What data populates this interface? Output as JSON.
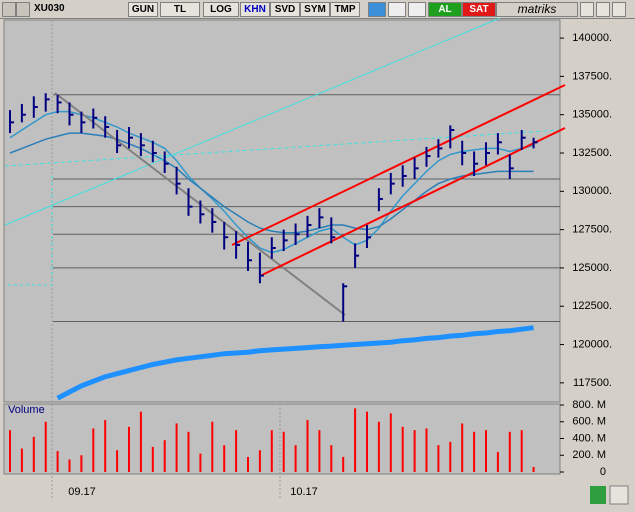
{
  "toolbar": {
    "symbol": "XU030",
    "buttons": [
      "GUN",
      "TL",
      "LOG",
      "KHN",
      "SVD",
      "SYM",
      "TMP"
    ],
    "buy": "AL",
    "sell": "SAT",
    "brand": "matriks"
  },
  "chart_data": [
    {
      "type": "ohlc",
      "ylim": [
        116250,
        141180
      ],
      "yticks": [
        {
          "value": 140000,
          "label": "140000."
        },
        {
          "value": 137500,
          "label": "137500."
        },
        {
          "value": 135000,
          "label": "135000."
        },
        {
          "value": 132500,
          "label": "132500."
        },
        {
          "value": 130000,
          "label": "130000."
        },
        {
          "value": 127500,
          "label": "127500."
        },
        {
          "value": 125000,
          "label": "125000."
        },
        {
          "value": 122500,
          "label": "122500."
        },
        {
          "value": 120000,
          "label": "120000."
        },
        {
          "value": 117500,
          "label": "117500."
        }
      ],
      "x_labels": [
        "09.17",
        "10.17"
      ],
      "color": "#000080",
      "high": [
        135300,
        135700,
        136200,
        136400,
        136300,
        135800,
        135200,
        135400,
        134900,
        134000,
        134200,
        133800,
        133300,
        132600,
        131600,
        130200,
        129400,
        128900,
        128000,
        127400,
        126700,
        126000,
        127000,
        127500,
        127900,
        128400,
        128900,
        128300,
        124000,
        126600,
        127800,
        130200,
        131200,
        131700,
        132200,
        132900,
        133400,
        134300,
        133300,
        132600,
        133200,
        133800,
        132400,
        134000,
        133500
      ],
      "low": [
        133800,
        134500,
        134800,
        135200,
        135100,
        134300,
        133800,
        134100,
        133500,
        132500,
        132800,
        132300,
        131900,
        131200,
        129800,
        128400,
        127900,
        127300,
        126200,
        125600,
        124800,
        124000,
        125600,
        126100,
        126500,
        127000,
        127600,
        126600,
        121500,
        125000,
        126300,
        128700,
        129800,
        130300,
        130800,
        131600,
        132200,
        132800,
        131700,
        131000,
        131700,
        132400,
        130800,
        132700,
        132800
      ],
      "close": [
        134500,
        135000,
        135500,
        136000,
        135800,
        135000,
        134500,
        134800,
        134200,
        133000,
        133500,
        133000,
        132500,
        131800,
        130500,
        129000,
        128500,
        128000,
        127000,
        126500,
        125500,
        124500,
        126300,
        126800,
        127200,
        127800,
        128300,
        127000,
        123800,
        125800,
        127000,
        129500,
        130500,
        131000,
        131500,
        132300,
        132800,
        134000,
        132500,
        131800,
        132500,
        133200,
        131500,
        133500,
        133200
      ],
      "lines": [
        {
          "color": "#3399cc",
          "width": 1.5,
          "values": [
            133500,
            134000,
            134500,
            135000,
            135200,
            135200,
            135000,
            134800,
            134500,
            134200,
            133800,
            133500,
            133200,
            132800,
            132000,
            131000,
            130200,
            129500,
            128700,
            127800,
            127000,
            126300,
            126000,
            126200,
            126600,
            127000,
            127400,
            127600,
            127000,
            126500,
            126800,
            127600,
            128700,
            129700,
            130500,
            131300,
            132000,
            132400,
            132600,
            132700,
            132800,
            132800,
            132600,
            132800,
            133000
          ]
        },
        {
          "color": "#2a7fb8",
          "width": 1.5,
          "values": [
            132500,
            132800,
            133100,
            133400,
            133600,
            133800,
            133800,
            133700,
            133600,
            133400,
            133100,
            132800,
            132400,
            132000,
            131500,
            130800,
            130200,
            129600,
            129000,
            128500,
            128000,
            127600,
            127400,
            127300,
            127300,
            127400,
            127600,
            127800,
            127800,
            127600,
            127500,
            127700,
            128200,
            128800,
            129400,
            130000,
            130500,
            130800,
            131000,
            131100,
            131200,
            131300,
            131300,
            131300,
            131300
          ]
        },
        {
          "color": "#1e90ff",
          "width": 5,
          "values": [
            null,
            null,
            null,
            null,
            116500,
            116900,
            117300,
            117600,
            117900,
            118100,
            118300,
            118500,
            118700,
            118850,
            119000,
            119100,
            119200,
            119300,
            119400,
            119450,
            119500,
            119600,
            119650,
            119700,
            119750,
            119800,
            119850,
            119900,
            119950,
            120000,
            120050,
            120100,
            120150,
            120250,
            120300,
            120400,
            120450,
            120550,
            120600,
            120700,
            120750,
            120850,
            120900,
            121000,
            121100
          ]
        }
      ],
      "levels": [
        136300,
        130800,
        129000,
        127200,
        125000,
        121500
      ]
    },
    {
      "type": "bar",
      "title": "Volume",
      "color": "#ff0000",
      "ylim": [
        0,
        836
      ],
      "yticks": [
        0,
        {
          "value": 200,
          "label": "200. M"
        },
        {
          "value": 400,
          "label": "400. M"
        },
        {
          "value": 600,
          "label": "600. M"
        },
        {
          "value": 800,
          "label": "800. M"
        }
      ],
      "values": [
        500,
        280,
        420,
        600,
        250,
        150,
        200,
        520,
        620,
        260,
        540,
        720,
        300,
        380,
        580,
        480,
        220,
        600,
        320,
        500,
        180,
        260,
        500,
        480,
        320,
        620,
        500,
        320,
        180,
        760,
        720,
        600,
        700,
        540,
        500,
        520,
        320,
        360,
        580,
        480,
        500,
        240,
        480,
        500,
        60
      ]
    }
  ]
}
